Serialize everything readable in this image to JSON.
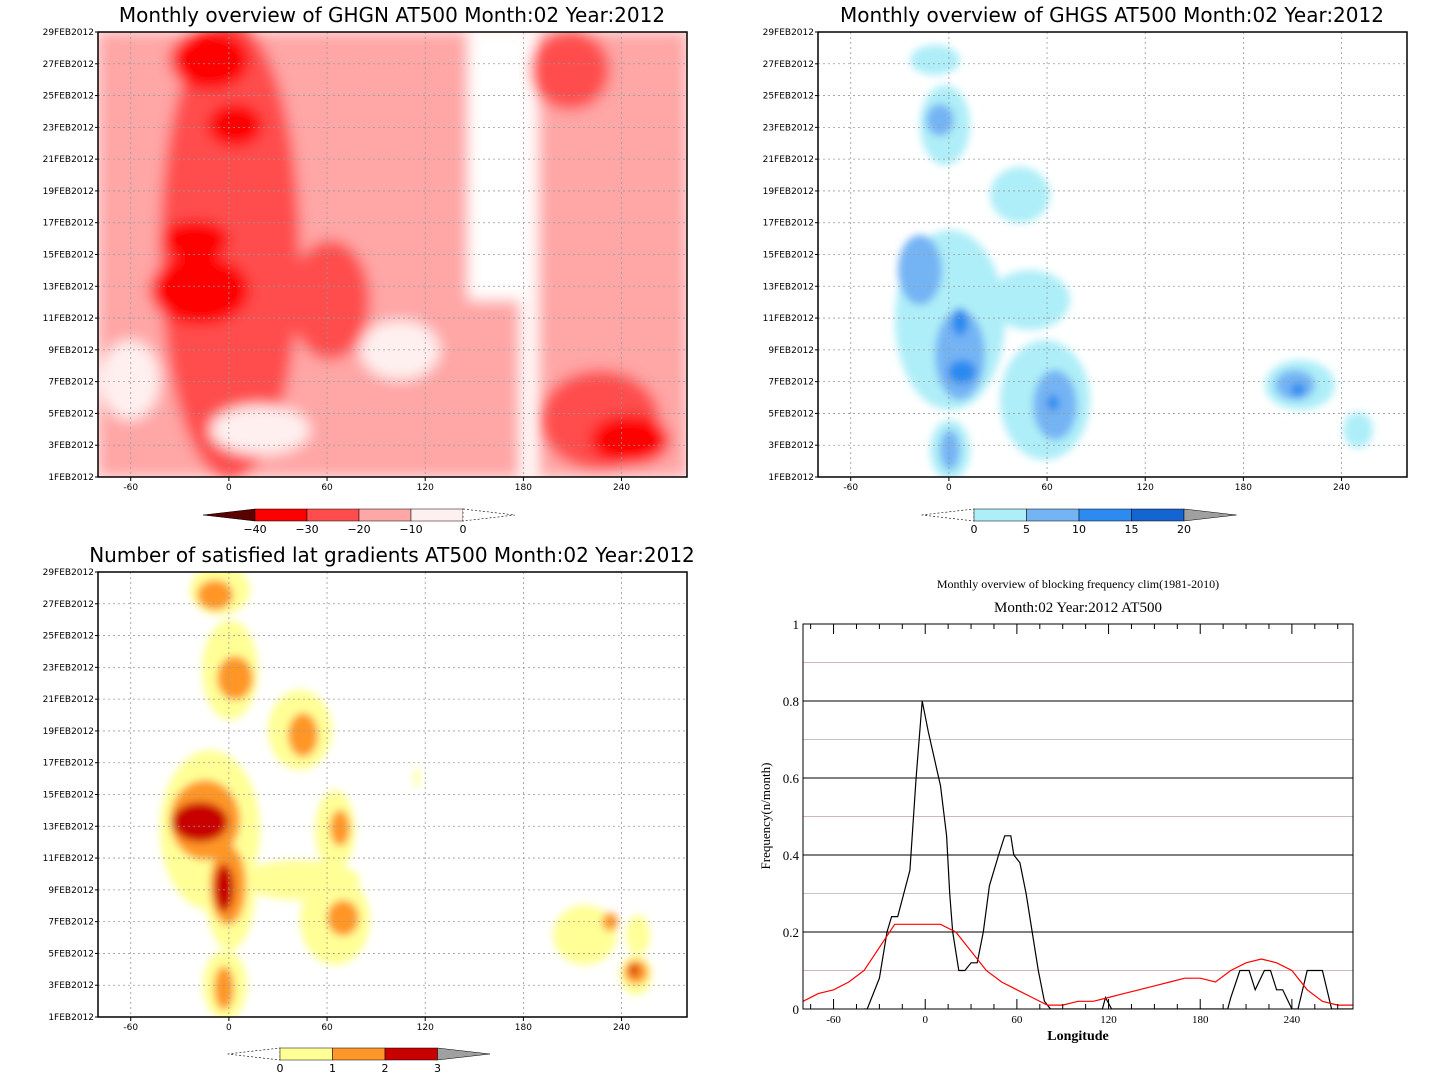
{
  "chart_data": [
    {
      "type": "heatmap",
      "title": "Monthly overview of GHGN AT500 Month:02 Year:2012",
      "x_ticks": [
        -60,
        0,
        60,
        120,
        180,
        240
      ],
      "xlim": [
        -80,
        280
      ],
      "y_ticks": [
        "1FEB2012",
        "3FEB2012",
        "5FEB2012",
        "7FEB2012",
        "9FEB2012",
        "11FEB2012",
        "13FEB2012",
        "15FEB2012",
        "17FEB2012",
        "19FEB2012",
        "21FEB2012",
        "23FEB2012",
        "25FEB2012",
        "27FEB2012",
        "29FEB2012"
      ],
      "colorbar": {
        "labels": [
          "-40",
          "-30",
          "-20",
          "-10",
          "0"
        ],
        "colors": [
          "#5a0000",
          "#ff0000",
          "#ff4d4d",
          "#ffa6a6",
          "#fff0f0"
        ]
      },
      "grid": true
    },
    {
      "type": "heatmap",
      "title": "Monthly overview of GHGS AT500 Month:02 Year:2012",
      "x_ticks": [
        -60,
        0,
        60,
        120,
        180,
        240
      ],
      "xlim": [
        -80,
        280
      ],
      "y_ticks": [
        "1FEB2012",
        "3FEB2012",
        "5FEB2012",
        "7FEB2012",
        "9FEB2012",
        "11FEB2012",
        "13FEB2012",
        "15FEB2012",
        "17FEB2012",
        "19FEB2012",
        "21FEB2012",
        "23FEB2012",
        "25FEB2012",
        "27FEB2012",
        "29FEB2012"
      ],
      "colorbar": {
        "labels": [
          "0",
          "5",
          "10",
          "15",
          "20"
        ],
        "colors": [
          "#aeeef8",
          "#74b4f4",
          "#2c8af0",
          "#1464d2",
          "#a0a0a0"
        ]
      },
      "grid": true
    },
    {
      "type": "heatmap",
      "title": "Number of satisfied lat gradients AT500 Month:02 Year:2012",
      "x_ticks": [
        -60,
        0,
        60,
        120,
        180,
        240
      ],
      "xlim": [
        -80,
        280
      ],
      "y_ticks": [
        "1FEB2012",
        "3FEB2012",
        "5FEB2012",
        "7FEB2012",
        "9FEB2012",
        "11FEB2012",
        "13FEB2012",
        "15FEB2012",
        "17FEB2012",
        "19FEB2012",
        "21FEB2012",
        "23FEB2012",
        "25FEB2012",
        "27FEB2012",
        "29FEB2012"
      ],
      "colorbar": {
        "labels": [
          "0",
          "1",
          "2",
          "3"
        ],
        "colors": [
          "#ffff96",
          "#ff9628",
          "#c80000",
          "#a0a0a0"
        ]
      },
      "grid": true
    },
    {
      "type": "line",
      "title": "Monthly overview of blocking frequency clim(1981-2010)",
      "subtitle": "Month:02 Year:2012  AT500",
      "xlabel": "Longitude",
      "ylabel": "Frequency(n/month)",
      "xlim": [
        -80,
        280
      ],
      "ylim": [
        0,
        1
      ],
      "x_ticks": [
        -60,
        0,
        60,
        120,
        180,
        240
      ],
      "y_ticks": [
        "0",
        "0.2",
        "0.4",
        "0.6",
        "0.8",
        "1"
      ],
      "series": [
        {
          "color": "#000000",
          "x": [
            -40,
            -38,
            -30,
            -25,
            -22,
            -18,
            -10,
            -6,
            -2,
            2,
            6,
            10,
            14,
            16,
            18,
            22,
            26,
            30,
            34,
            38,
            42,
            48,
            52,
            56,
            58,
            62,
            66,
            70,
            74,
            78,
            82,
            86,
            90,
            100,
            116,
            118,
            122,
            130,
            140,
            160,
            180,
            198,
            200,
            206,
            212,
            216,
            222,
            226,
            230,
            234,
            240,
            244,
            250,
            254,
            260,
            266,
            270,
            280
          ],
          "y": [
            0,
            0,
            0.08,
            0.2,
            0.24,
            0.24,
            0.36,
            0.6,
            0.8,
            0.72,
            0.65,
            0.58,
            0.45,
            0.3,
            0.2,
            0.1,
            0.1,
            0.12,
            0.12,
            0.2,
            0.32,
            0.4,
            0.45,
            0.45,
            0.4,
            0.38,
            0.3,
            0.2,
            0.1,
            0.02,
            0,
            0,
            0,
            0,
            0,
            0.03,
            0,
            0,
            0,
            0,
            0,
            0,
            0.03,
            0.1,
            0.1,
            0.05,
            0.1,
            0.1,
            0.05,
            0.05,
            0,
            0,
            0.1,
            0.1,
            0.1,
            0,
            0,
            0
          ]
        },
        {
          "color": "#ff0000",
          "x": [
            -80,
            -70,
            -60,
            -50,
            -40,
            -30,
            -20,
            -10,
            0,
            10,
            20,
            30,
            40,
            50,
            60,
            70,
            80,
            90,
            100,
            110,
            120,
            130,
            140,
            150,
            160,
            170,
            180,
            190,
            200,
            210,
            220,
            230,
            240,
            250,
            260,
            270,
            280
          ],
          "y": [
            0.02,
            0.04,
            0.05,
            0.07,
            0.1,
            0.16,
            0.22,
            0.22,
            0.22,
            0.22,
            0.2,
            0.15,
            0.1,
            0.07,
            0.05,
            0.03,
            0.01,
            0.01,
            0.02,
            0.02,
            0.03,
            0.04,
            0.05,
            0.06,
            0.07,
            0.08,
            0.08,
            0.07,
            0.1,
            0.12,
            0.13,
            0.12,
            0.1,
            0.05,
            0.02,
            0.01,
            0.01
          ]
        }
      ],
      "grid": true
    }
  ]
}
